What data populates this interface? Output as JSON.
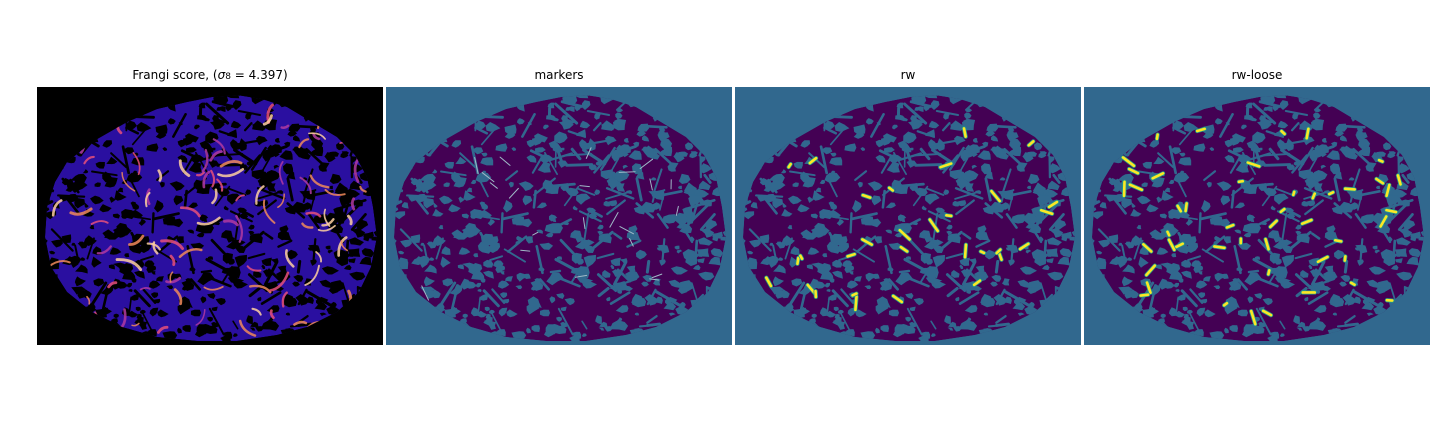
{
  "figure": {
    "panels": [
      {
        "id": "frangi",
        "title_prefix": "Frangi score, (",
        "title_sigma": "σ",
        "title_sub": "8",
        "title_suffix": " = 4.397)",
        "colormap": "magma",
        "background": "#000000",
        "blob_color": "#2a0fa0",
        "vessel_colors": [
          "#b23aa0",
          "#e8507a",
          "#f08a5a",
          "#ffd0a0"
        ]
      },
      {
        "id": "markers",
        "title": "markers",
        "colormap": "viridis",
        "background": "#31688e",
        "blob_color": "#440154",
        "marker_color": "#9fb9c7"
      },
      {
        "id": "rw",
        "title": "rw",
        "colormap": "viridis",
        "background": "#31688e",
        "blob_color": "#440154",
        "highlight_color": "#fde725"
      },
      {
        "id": "rw-loose",
        "title": "rw-loose",
        "colormap": "viridis",
        "background": "#31688e",
        "blob_color": "#440154",
        "highlight_color": "#fde725"
      }
    ]
  }
}
